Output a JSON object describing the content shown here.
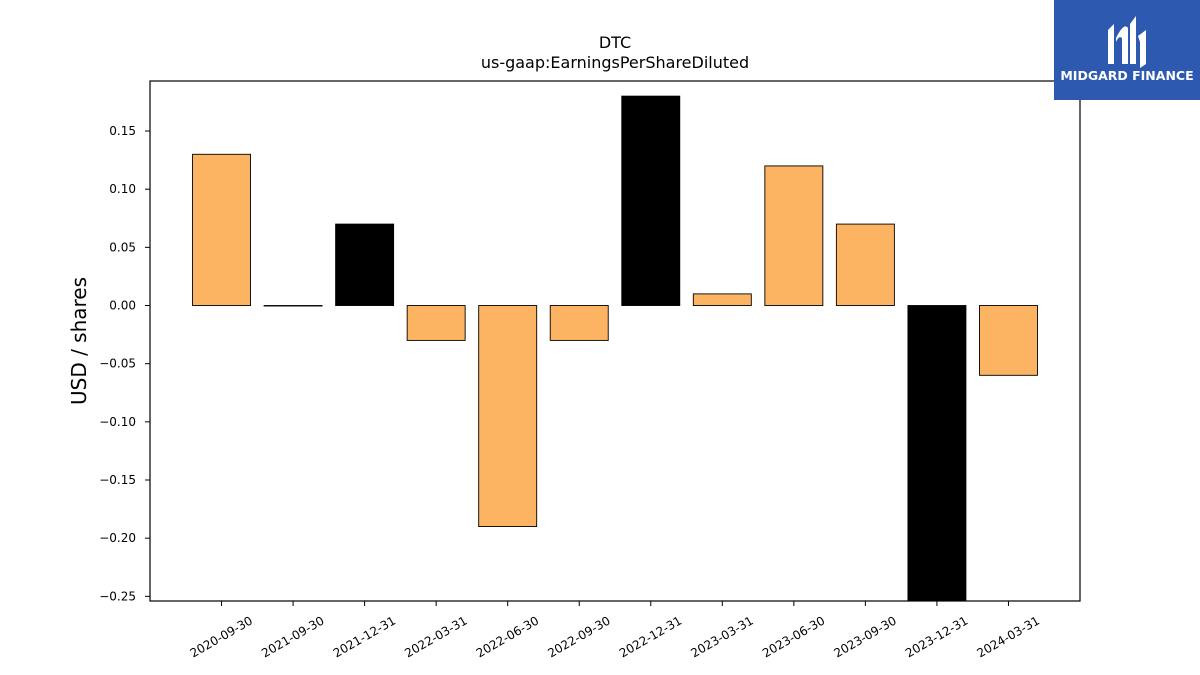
{
  "chart_data": {
    "type": "bar",
    "title": "DTC",
    "subtitle": "us-gaap:EarningsPerShareDiluted",
    "xlabel": "",
    "ylabel": "USD / shares",
    "categories": [
      "2020-09-30",
      "2021-09-30",
      "2021-12-31",
      "2022-03-31",
      "2022-06-30",
      "2022-09-30",
      "2022-12-31",
      "2023-03-31",
      "2023-06-30",
      "2023-09-30",
      "2023-12-31",
      "2024-03-31"
    ],
    "values": [
      0.13,
      0.0,
      0.07,
      -0.03,
      -0.19,
      -0.03,
      0.18,
      0.01,
      0.12,
      0.07,
      -0.26,
      -0.06
    ],
    "bar_colors": [
      "#fdb462",
      "#fdb462",
      "#000000",
      "#fdb462",
      "#fdb462",
      "#fdb462",
      "#000000",
      "#fdb462",
      "#fdb462",
      "#fdb462",
      "#000000",
      "#fdb462"
    ],
    "ylim": [
      -0.254,
      0.193
    ],
    "yticks": [
      -0.25,
      -0.2,
      -0.15,
      -0.1,
      -0.05,
      0.0,
      0.05,
      0.1,
      0.15
    ],
    "ytick_labels": [
      "−0.25",
      "−0.20",
      "−0.15",
      "−0.10",
      "−0.05",
      "0.00",
      "0.05",
      "0.10",
      "0.15"
    ],
    "grid": false
  },
  "logo": {
    "text": "MIDGARD FINANCE",
    "color": "#2d5ab0"
  }
}
